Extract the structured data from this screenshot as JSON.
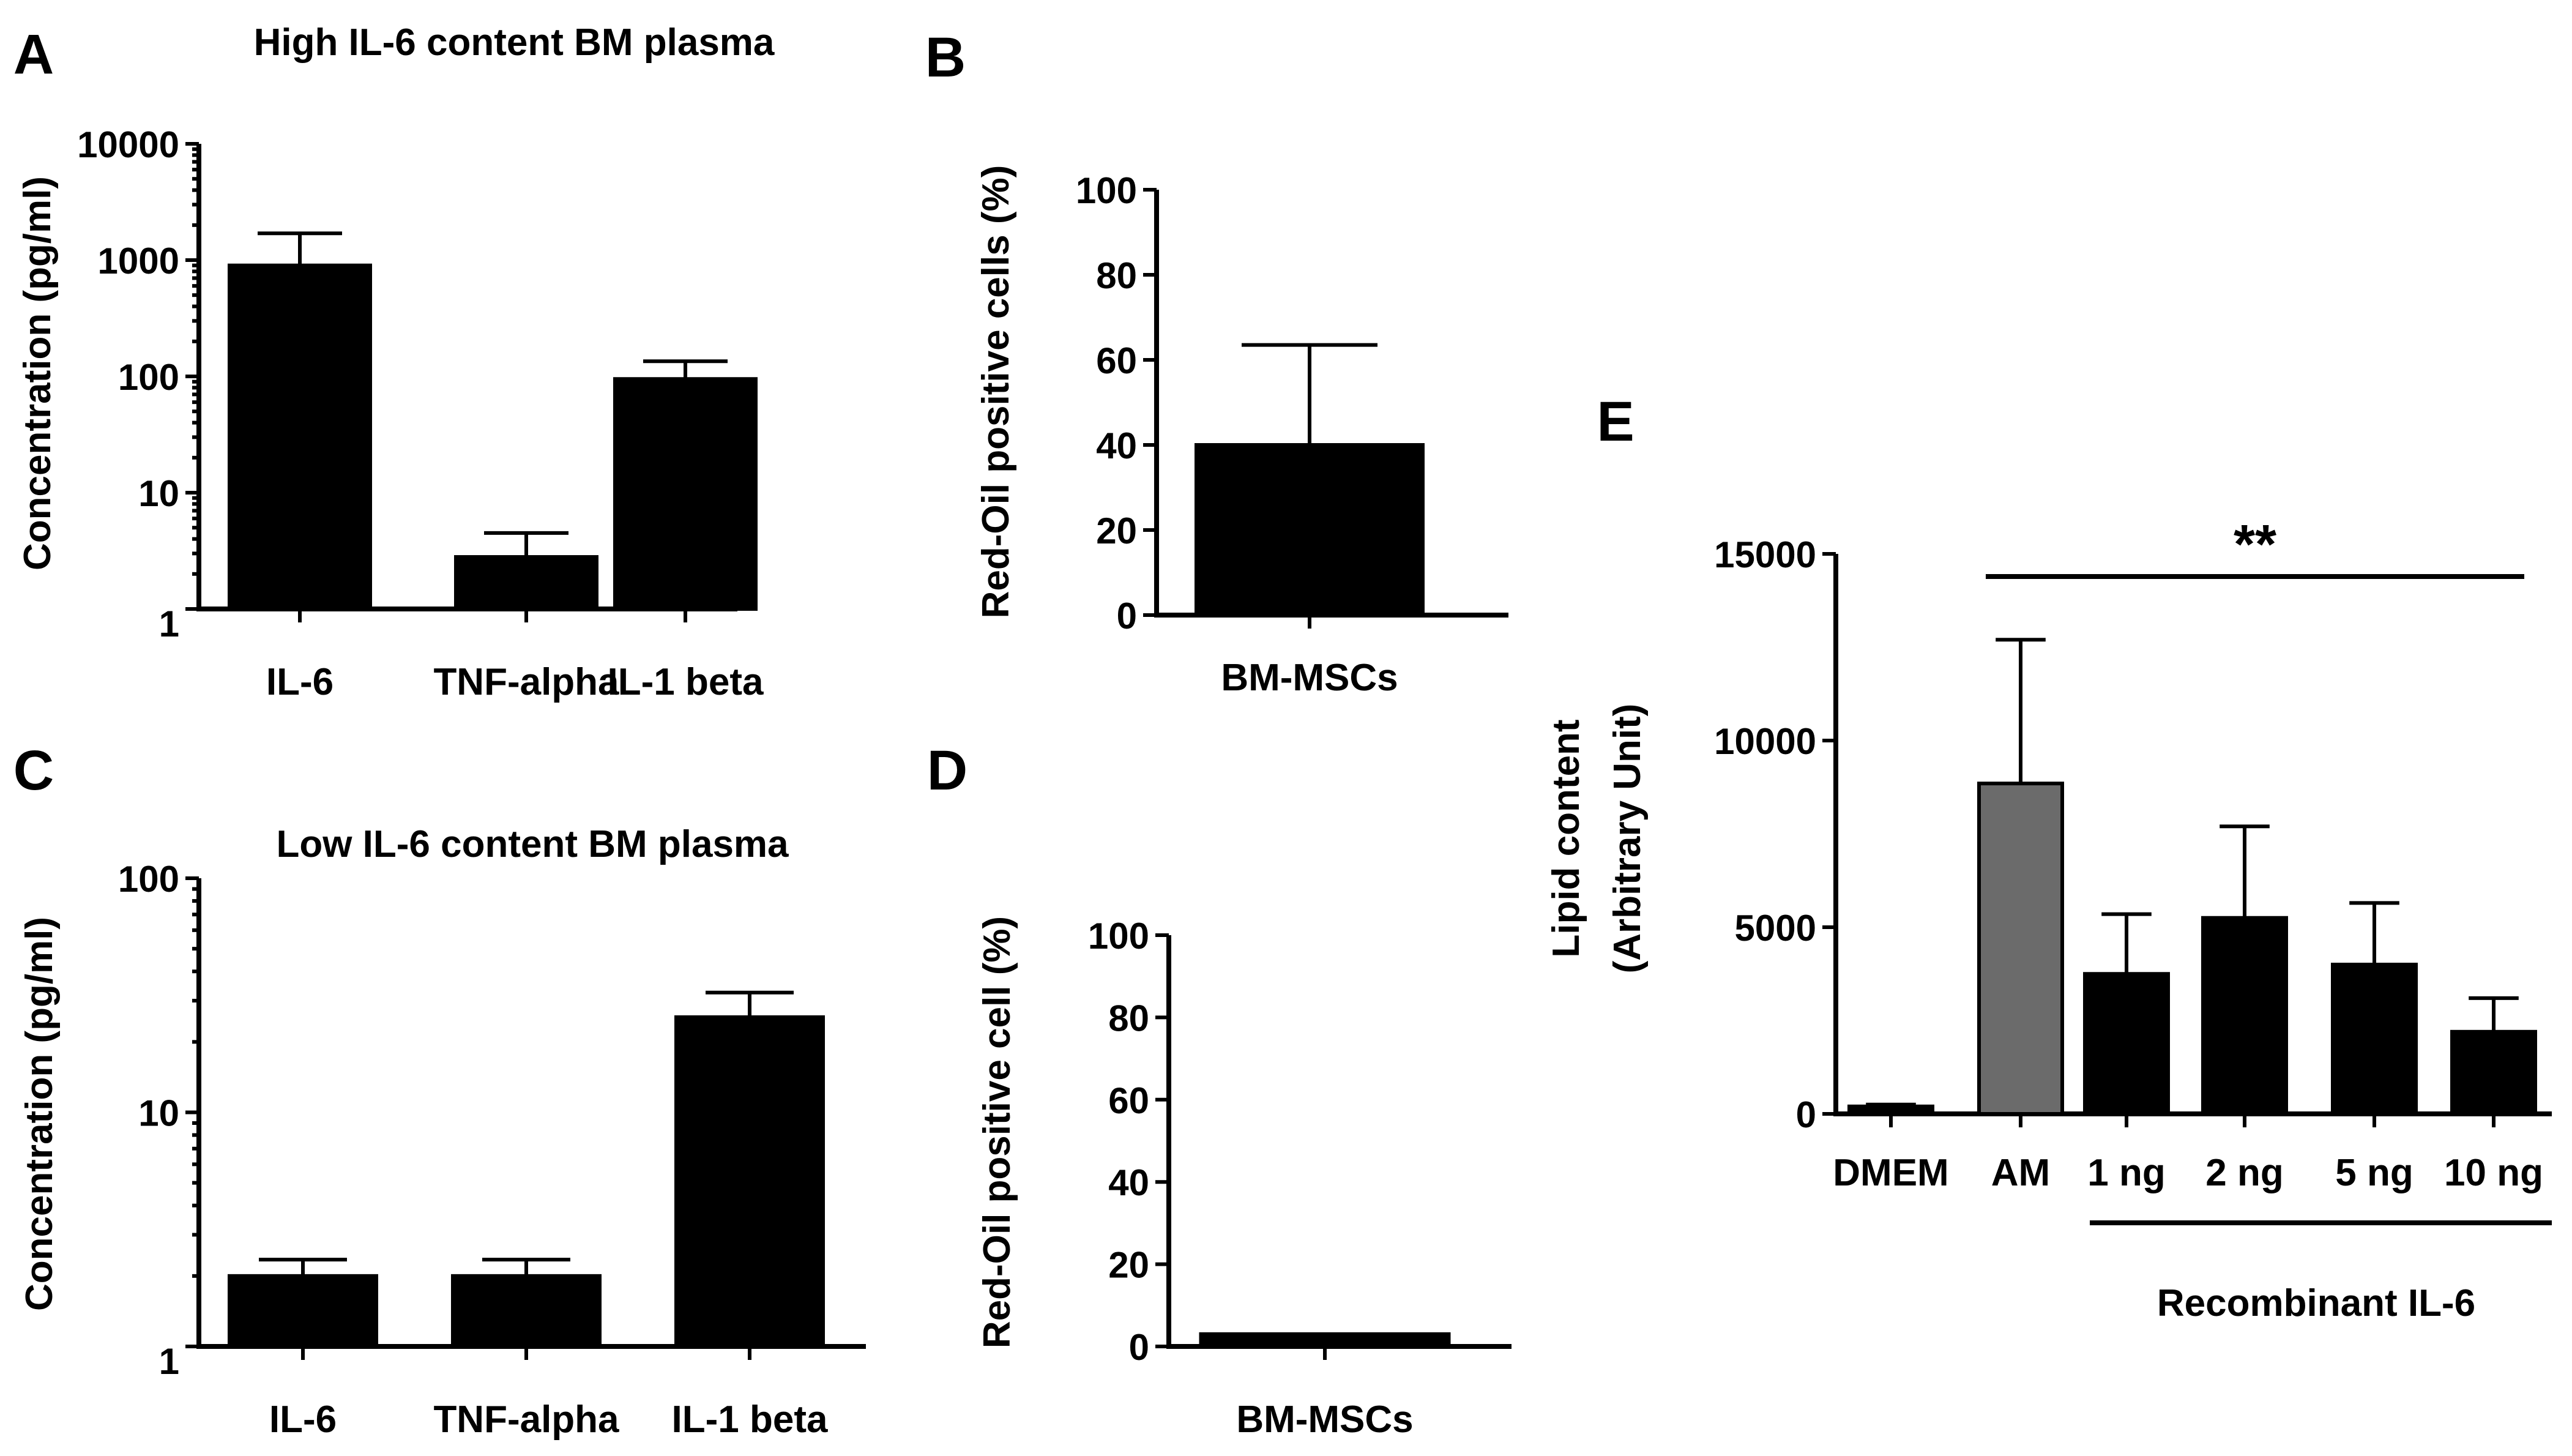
{
  "chart_data": [
    {
      "id": "A",
      "type": "bar",
      "panel_label": "A",
      "title": "High IL-6 content BM plasma",
      "ylabel": "Concentration (pg/ml)",
      "xlabel": "",
      "yscale": "log",
      "ylim": [
        1,
        10000
      ],
      "yticks": [
        1,
        10,
        100,
        1000,
        10000
      ],
      "ytick_labels": [
        "1",
        "10",
        "100",
        "1000",
        "10000"
      ],
      "categories": [
        "IL-6",
        "TNF-alpha",
        "IL-1 beta"
      ],
      "values": [
        900,
        2.8,
        95
      ],
      "errors": [
        1700,
        4.5,
        135
      ],
      "colors": [
        "#000000",
        "#000000",
        "#000000"
      ]
    },
    {
      "id": "B",
      "type": "bar",
      "panel_label": "B",
      "title": "",
      "ylabel": "Red-Oil positive cells (%)",
      "xlabel": "",
      "yscale": "linear",
      "ylim": [
        0,
        100
      ],
      "yticks": [
        0,
        20,
        40,
        60,
        80,
        100
      ],
      "ytick_labels": [
        "0",
        "20",
        "40",
        "60",
        "80",
        "100"
      ],
      "categories": [
        "BM-MSCs"
      ],
      "values": [
        40
      ],
      "errors": [
        63.5
      ],
      "colors": [
        "#000000"
      ]
    },
    {
      "id": "C",
      "type": "bar",
      "panel_label": "C",
      "title": "Low IL-6 content BM plasma",
      "ylabel": "Concentration (pg/ml)",
      "xlabel": "",
      "yscale": "log",
      "ylim": [
        1,
        100
      ],
      "yticks": [
        1,
        10,
        100
      ],
      "ytick_labels": [
        "1",
        "10",
        "100"
      ],
      "categories": [
        "IL-6",
        "TNF-alpha",
        "IL-1 beta"
      ],
      "values": [
        2.0,
        2.0,
        25.5
      ],
      "errors": [
        2.35,
        2.35,
        32.5
      ],
      "colors": [
        "#000000",
        "#000000",
        "#000000"
      ]
    },
    {
      "id": "D",
      "type": "bar",
      "panel_label": "D",
      "title": "",
      "ylabel": "Red-Oil positive cell (%)",
      "xlabel": "",
      "yscale": "linear",
      "ylim": [
        0,
        100
      ],
      "yticks": [
        0,
        20,
        40,
        60,
        80,
        100
      ],
      "ytick_labels": [
        "0",
        "20",
        "40",
        "60",
        "80",
        "100"
      ],
      "categories": [
        "BM-MSCs"
      ],
      "values": [
        3
      ],
      "errors": [
        null
      ],
      "colors": [
        "#000000"
      ]
    },
    {
      "id": "E",
      "type": "bar",
      "panel_label": "E",
      "title": "",
      "ylabel": "Lipid content",
      "ylabel2": "(Arbitrary Unit)",
      "xlabel": "",
      "yscale": "linear",
      "ylim": [
        0,
        15000
      ],
      "yticks": [
        0,
        5000,
        10000,
        15000
      ],
      "ytick_labels": [
        "0",
        "5000",
        "10000",
        "15000"
      ],
      "categories": [
        "DMEM",
        "AM",
        "1 ng",
        "2 ng",
        "5 ng",
        "10 ng"
      ],
      "values": [
        200,
        8850,
        3750,
        5250,
        4000,
        2200
      ],
      "errors": [
        250,
        12700,
        5350,
        7700,
        5650,
        3100
      ],
      "colors": [
        "#000000",
        "#6b6b6b",
        "#000000",
        "#000000",
        "#000000",
        "#000000"
      ],
      "significance": "**",
      "group_label": "Recombinant IL-6"
    }
  ]
}
